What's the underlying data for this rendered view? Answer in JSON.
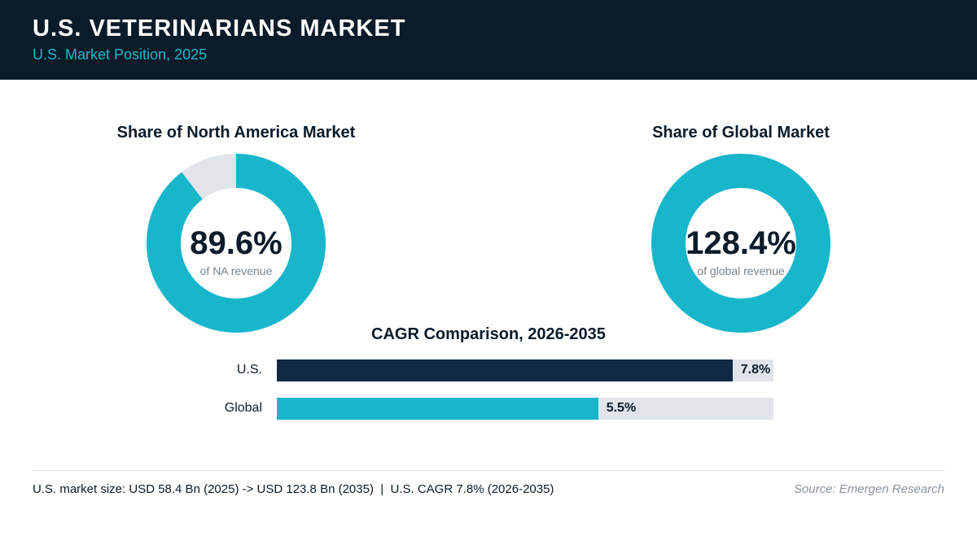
{
  "header": {
    "title": "U.S. VETERINARIANS MARKET",
    "subtitle": "U.S. Market Position, 2025"
  },
  "colors": {
    "header_bg": "#0b1b29",
    "accent_teal": "#17b6cb",
    "navy": "#0f2a42",
    "track": "#e1e5ea"
  },
  "chart_data": [
    {
      "type": "pie",
      "title": "Share of North America Market",
      "center_value": "89.6%",
      "center_label": "of NA revenue",
      "values": [
        89.6
      ],
      "max": 100
    },
    {
      "type": "pie",
      "title": "Share of Global Market",
      "center_value": "128.4%",
      "center_label": "of global revenue",
      "values": [
        128.4
      ],
      "max": 100
    },
    {
      "type": "bar",
      "orientation": "horizontal",
      "title": "CAGR Comparison, 2026-2035",
      "categories": [
        "U.S.",
        "Global"
      ],
      "values": [
        7.8,
        5.5
      ],
      "value_labels": [
        "7.8%",
        "5.5%"
      ],
      "xlim": [
        0,
        8.5
      ],
      "colors": [
        "#0f2a42",
        "#17b6cb"
      ]
    }
  ],
  "footer": {
    "note": "U.S. market size: USD 58.4 Bn (2025) -> USD 123.8 Bn (2035)  |  U.S. CAGR 7.8% (2026-2035)",
    "source": "Source: Emergen Research"
  }
}
